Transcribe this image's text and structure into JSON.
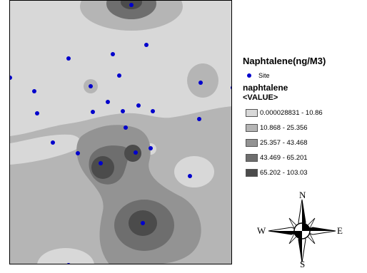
{
  "legend": {
    "title": "Naphtalene(ng/M3)",
    "site_label": "Site",
    "layer_name": "naphtalene",
    "value_label": "<VALUE>",
    "classes": [
      {
        "label": "0.000028831 - 10.86",
        "color": "#d8d8d8"
      },
      {
        "label": "10.868 - 25.356",
        "color": "#b5b5b5"
      },
      {
        "label": "25.357 - 43.468",
        "color": "#939393"
      },
      {
        "label": "43.469 - 65.201",
        "color": "#6e6e6e"
      },
      {
        "label": "65.202 - 103.03",
        "color": "#4b4b4b"
      }
    ]
  },
  "compass": {
    "north": "N",
    "south": "S",
    "east": "E",
    "west": "W"
  },
  "site_color": "#0000cc"
}
